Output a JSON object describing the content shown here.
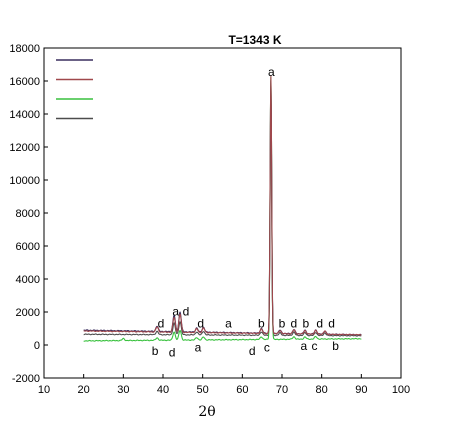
{
  "chart_data": {
    "type": "line",
    "title": "T=1343 K",
    "xlabel": "2θ",
    "ylabel": "",
    "xlim": [
      10,
      100
    ],
    "ylim": [
      -2000,
      18000
    ],
    "xticks": [
      10,
      20,
      30,
      40,
      50,
      60,
      70,
      80,
      90,
      100
    ],
    "yticks": [
      -2000,
      0,
      2000,
      4000,
      6000,
      8000,
      10000,
      12000,
      14000,
      16000,
      18000
    ],
    "grid": false,
    "legend": "top-left",
    "series": [
      {
        "color": "#3a2e5e",
        "baseline_start": 900,
        "baseline_end": 620,
        "peaks": [
          [
            38.5,
            320
          ],
          [
            42.8,
            1000
          ],
          [
            44.3,
            1200
          ],
          [
            48.5,
            250
          ],
          [
            50.2,
            300
          ],
          [
            64.8,
            280
          ],
          [
            67.2,
            15300
          ],
          [
            69.5,
            200
          ],
          [
            73.0,
            260
          ],
          [
            75.8,
            220
          ],
          [
            78.5,
            250
          ],
          [
            80.8,
            200
          ]
        ]
      },
      {
        "color": "#a0484c",
        "baseline_start": 850,
        "baseline_end": 620,
        "peaks": [
          [
            38.5,
            300
          ],
          [
            42.8,
            900
          ],
          [
            44.3,
            1100
          ],
          [
            48.5,
            230
          ],
          [
            50.2,
            280
          ],
          [
            64.8,
            260
          ],
          [
            67.2,
            15600
          ],
          [
            69.5,
            190
          ],
          [
            73.0,
            240
          ],
          [
            75.8,
            210
          ],
          [
            78.5,
            230
          ],
          [
            80.8,
            190
          ]
        ]
      },
      {
        "color": "#39c13e",
        "baseline_start": 250,
        "baseline_end": 380,
        "peaks": [
          [
            30.0,
            120
          ],
          [
            38.5,
            150
          ],
          [
            42.8,
            500
          ],
          [
            44.3,
            600
          ],
          [
            48.5,
            150
          ],
          [
            50.2,
            180
          ],
          [
            64.8,
            160
          ],
          [
            67.2,
            15900
          ],
          [
            73.0,
            150
          ],
          [
            75.8,
            130
          ],
          [
            78.5,
            150
          ]
        ]
      },
      {
        "color": "#4d4d4d",
        "baseline_start": 650,
        "baseline_end": 560,
        "peaks": [
          [
            38.5,
            200
          ],
          [
            42.8,
            700
          ],
          [
            44.3,
            800
          ],
          [
            48.5,
            180
          ],
          [
            50.2,
            220
          ],
          [
            64.8,
            200
          ],
          [
            67.2,
            14500
          ],
          [
            69.5,
            150
          ],
          [
            73.0,
            200
          ],
          [
            75.8,
            170
          ],
          [
            78.5,
            190
          ],
          [
            80.8,
            160
          ]
        ]
      }
    ],
    "annotations": [
      {
        "text": "a",
        "x": 67.3,
        "y": 16300
      },
      {
        "text": "d",
        "x": 39.5,
        "y": 1050
      },
      {
        "text": "a",
        "x": 43.2,
        "y": 1800
      },
      {
        "text": "d",
        "x": 45.8,
        "y": 1800
      },
      {
        "text": "d",
        "x": 49.5,
        "y": 1050
      },
      {
        "text": "a",
        "x": 56.5,
        "y": 1050
      },
      {
        "text": "b",
        "x": 64.8,
        "y": 1050
      },
      {
        "text": "b",
        "x": 70.0,
        "y": 1050
      },
      {
        "text": "d",
        "x": 73.0,
        "y": 1050
      },
      {
        "text": "b",
        "x": 76.0,
        "y": 1050
      },
      {
        "text": "d",
        "x": 79.5,
        "y": 1050
      },
      {
        "text": "d",
        "x": 82.5,
        "y": 1050
      },
      {
        "text": "b",
        "x": 38.0,
        "y": -600
      },
      {
        "text": "d",
        "x": 42.3,
        "y": -700
      },
      {
        "text": "a",
        "x": 48.8,
        "y": -400
      },
      {
        "text": "d",
        "x": 62.5,
        "y": -600
      },
      {
        "text": "c",
        "x": 66.2,
        "y": -400
      },
      {
        "text": "a",
        "x": 75.5,
        "y": -300
      },
      {
        "text": "c",
        "x": 78.2,
        "y": -300
      },
      {
        "text": "b",
        "x": 83.5,
        "y": -300
      }
    ]
  }
}
